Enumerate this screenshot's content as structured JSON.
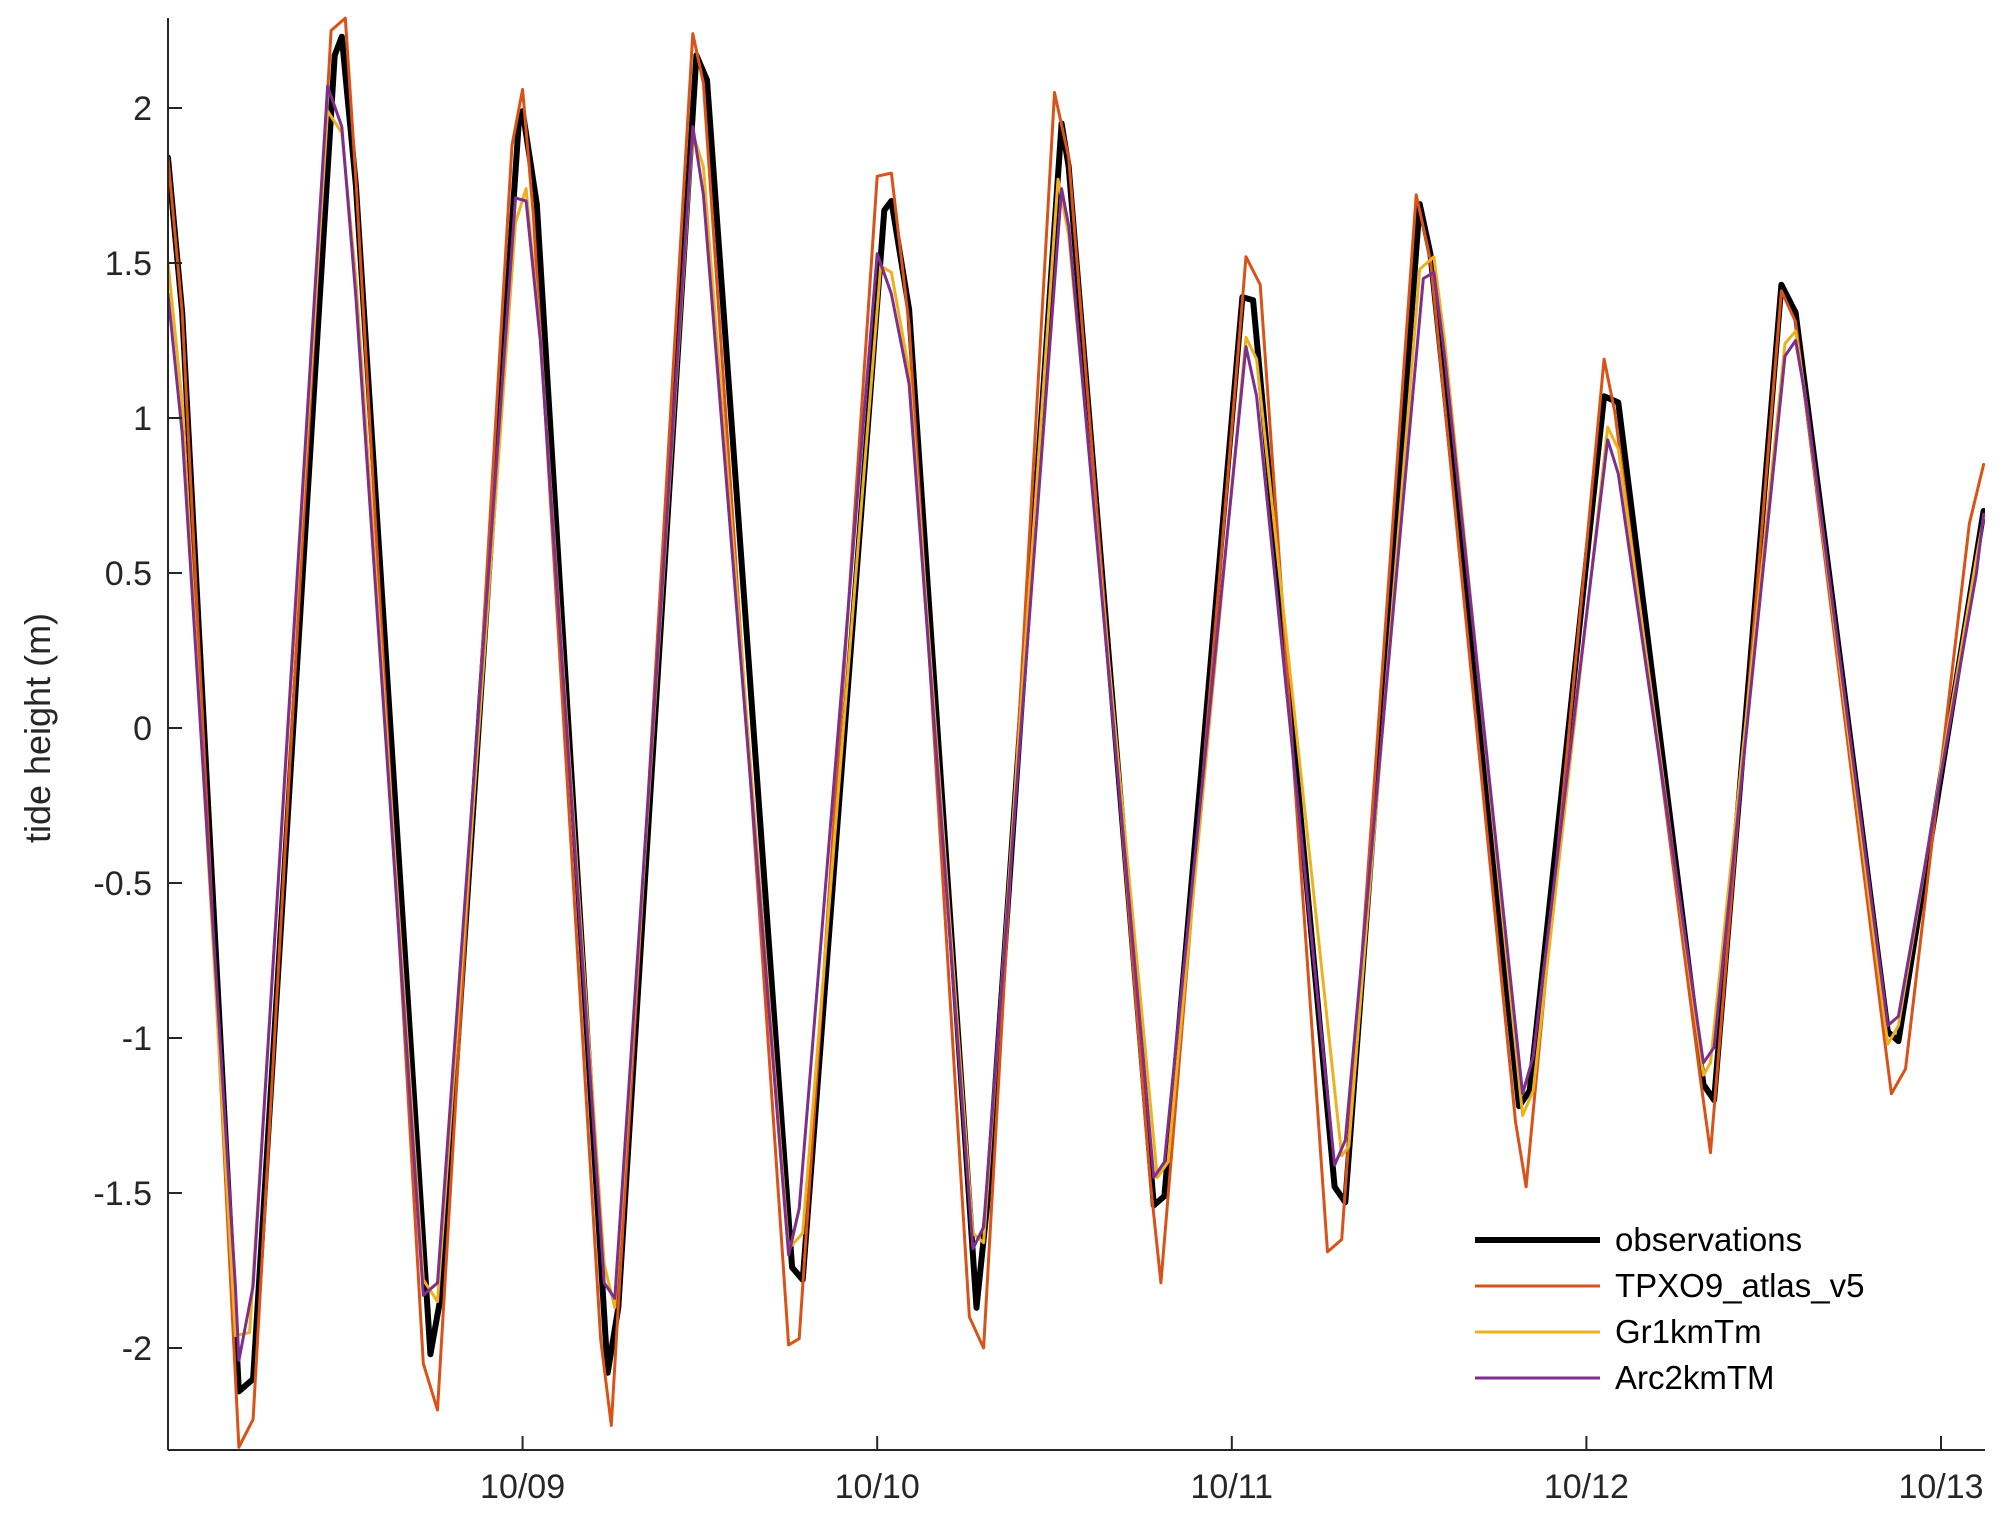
{
  "chart_data": {
    "type": "line",
    "title": "",
    "xlabel": "",
    "ylabel": "tide height (m)",
    "xlim": [
      0,
      5.12
    ],
    "ylim": [
      -2.33,
      2.3
    ],
    "grid": false,
    "legend_position": "bottom-right",
    "x_ticks": [
      {
        "value": 1,
        "label": "10/09"
      },
      {
        "value": 2,
        "label": "10/10"
      },
      {
        "value": 3,
        "label": "10/11"
      },
      {
        "value": 4,
        "label": "10/12"
      },
      {
        "value": 5,
        "label": "10/13"
      }
    ],
    "y_ticks": [
      {
        "value": 2,
        "label": "2"
      },
      {
        "value": 1.5,
        "label": "1.5"
      },
      {
        "value": 1,
        "label": "1"
      },
      {
        "value": 0.5,
        "label": "0.5"
      },
      {
        "value": 0,
        "label": "0"
      },
      {
        "value": -0.5,
        "label": "-0.5"
      },
      {
        "value": -1,
        "label": "-1"
      },
      {
        "value": -1.5,
        "label": "-1.5"
      },
      {
        "value": -2,
        "label": "-2"
      }
    ],
    "series": [
      {
        "name": "observations",
        "color": "#000000",
        "width": 6,
        "points": [
          [
            0,
            1.84
          ],
          [
            0.04,
            1.34
          ],
          [
            0.2,
            -2.14
          ],
          [
            0.24,
            -2.1
          ],
          [
            0.47,
            2.17
          ],
          [
            0.49,
            2.23
          ],
          [
            0.53,
            1.75
          ],
          [
            0.74,
            -2.02
          ],
          [
            0.77,
            -1.83
          ],
          [
            0.99,
            1.97
          ],
          [
            1,
            1.99
          ],
          [
            1.04,
            1.69
          ],
          [
            1.24,
            -2.08
          ],
          [
            1.27,
            -1.87
          ],
          [
            1.49,
            2.17
          ],
          [
            1.52,
            2.09
          ],
          [
            1.76,
            -1.74
          ],
          [
            1.79,
            -1.78
          ],
          [
            2.02,
            1.67
          ],
          [
            2.04,
            1.7
          ],
          [
            2.09,
            1.35
          ],
          [
            2.28,
            -1.87
          ],
          [
            2.31,
            -1.54
          ],
          [
            2.52,
            1.95
          ],
          [
            2.54,
            1.81
          ],
          [
            2.78,
            -1.54
          ],
          [
            2.81,
            -1.51
          ],
          [
            3.03,
            1.39
          ],
          [
            3.06,
            1.38
          ],
          [
            3.29,
            -1.48
          ],
          [
            3.32,
            -1.53
          ],
          [
            3.53,
            1.69
          ],
          [
            3.56,
            1.53
          ],
          [
            3.81,
            -1.22
          ],
          [
            3.84,
            -1.17
          ],
          [
            4.05,
            1.07
          ],
          [
            4.09,
            1.05
          ],
          [
            4.33,
            -1.15
          ],
          [
            4.36,
            -1.2
          ],
          [
            4.55,
            1.43
          ],
          [
            4.59,
            1.34
          ],
          [
            4.85,
            -0.98
          ],
          [
            4.88,
            -1.01
          ],
          [
            5.12,
            0.7
          ]
        ]
      },
      {
        "name": "TPXO9_atlas_v5",
        "color": "#D95319",
        "width": 3,
        "points": [
          [
            0,
            1.84
          ],
          [
            0.04,
            1.34
          ],
          [
            0.2,
            -2.32
          ],
          [
            0.24,
            -2.23
          ],
          [
            0.46,
            2.25
          ],
          [
            0.5,
            2.29
          ],
          [
            0.53,
            1.77
          ],
          [
            0.72,
            -2.05
          ],
          [
            0.76,
            -2.2
          ],
          [
            0.97,
            1.88
          ],
          [
            1,
            2.06
          ],
          [
            1.03,
            1.66
          ],
          [
            1.22,
            -1.97
          ],
          [
            1.25,
            -2.25
          ],
          [
            1.48,
            2.24
          ],
          [
            1.51,
            2.08
          ],
          [
            1.75,
            -1.99
          ],
          [
            1.78,
            -1.97
          ],
          [
            2,
            1.78
          ],
          [
            2.04,
            1.79
          ],
          [
            2.09,
            1.3
          ],
          [
            2.26,
            -1.9
          ],
          [
            2.3,
            -2
          ],
          [
            2.5,
            2.05
          ],
          [
            2.54,
            1.84
          ],
          [
            2.77,
            -1.46
          ],
          [
            2.8,
            -1.79
          ],
          [
            3.04,
            1.52
          ],
          [
            3.08,
            1.43
          ],
          [
            3.27,
            -1.69
          ],
          [
            3.31,
            -1.65
          ],
          [
            3.52,
            1.72
          ],
          [
            3.56,
            1.51
          ],
          [
            3.8,
            -1.27
          ],
          [
            3.83,
            -1.48
          ],
          [
            4.05,
            1.19
          ],
          [
            4.08,
            1.02
          ],
          [
            4.32,
            -1.12
          ],
          [
            4.35,
            -1.37
          ],
          [
            4.55,
            1.41
          ],
          [
            4.59,
            1.31
          ],
          [
            4.84,
            -1
          ],
          [
            4.86,
            -1.18
          ],
          [
            4.9,
            -1.1
          ],
          [
            5.08,
            0.66
          ],
          [
            5.12,
            0.85
          ]
        ]
      },
      {
        "name": "Gr1kmTm",
        "color": "#EDB120",
        "width": 3,
        "points": [
          [
            0,
            1.5
          ],
          [
            0.04,
            1.05
          ],
          [
            0.19,
            -1.96
          ],
          [
            0.23,
            -1.95
          ],
          [
            0.45,
            1.99
          ],
          [
            0.49,
            1.92
          ],
          [
            0.53,
            1.45
          ],
          [
            0.72,
            -1.78
          ],
          [
            0.76,
            -1.85
          ],
          [
            0.98,
            1.63
          ],
          [
            1.01,
            1.74
          ],
          [
            1.05,
            1.26
          ],
          [
            1.23,
            -1.73
          ],
          [
            1.26,
            -1.87
          ],
          [
            1.48,
            1.92
          ],
          [
            1.51,
            1.81
          ],
          [
            1.75,
            -1.68
          ],
          [
            1.79,
            -1.63
          ],
          [
            2.01,
            1.49
          ],
          [
            2.04,
            1.47
          ],
          [
            2.09,
            1.15
          ],
          [
            2.27,
            -1.63
          ],
          [
            2.3,
            -1.66
          ],
          [
            2.51,
            1.77
          ],
          [
            2.54,
            1.59
          ],
          [
            2.79,
            -1.45
          ],
          [
            2.82,
            -1.4
          ],
          [
            3.04,
            1.26
          ],
          [
            3.07,
            1.19
          ],
          [
            3.31,
            -1.38
          ],
          [
            3.33,
            -1.35
          ],
          [
            3.53,
            1.48
          ],
          [
            3.57,
            1.52
          ],
          [
            3.6,
            1.25
          ],
          [
            3.82,
            -1.25
          ],
          [
            3.85,
            -1.17
          ],
          [
            4.06,
            0.97
          ],
          [
            4.09,
            0.9
          ],
          [
            4.33,
            -1.12
          ],
          [
            4.35,
            -1.08
          ],
          [
            4.56,
            1.24
          ],
          [
            4.59,
            1.28
          ],
          [
            4.62,
            1.05
          ],
          [
            4.85,
            -1.02
          ],
          [
            4.88,
            -0.96
          ],
          [
            5.1,
            0.55
          ],
          [
            5.12,
            0.68
          ]
        ]
      },
      {
        "name": "Arc2kmTM",
        "color": "#7E2F8E",
        "width": 3,
        "points": [
          [
            0,
            1.4
          ],
          [
            0.04,
            0.95
          ],
          [
            0.19,
            -1.8
          ],
          [
            0.2,
            -2.04
          ],
          [
            0.24,
            -1.8
          ],
          [
            0.45,
            2.07
          ],
          [
            0.49,
            1.94
          ],
          [
            0.53,
            1.39
          ],
          [
            0.72,
            -1.83
          ],
          [
            0.76,
            -1.79
          ],
          [
            0.98,
            1.71
          ],
          [
            1.01,
            1.7
          ],
          [
            1.05,
            1.25
          ],
          [
            1.23,
            -1.79
          ],
          [
            1.26,
            -1.84
          ],
          [
            1.48,
            1.94
          ],
          [
            1.51,
            1.72
          ],
          [
            1.75,
            -1.7
          ],
          [
            1.78,
            -1.55
          ],
          [
            2,
            1.53
          ],
          [
            2.04,
            1.4
          ],
          [
            2.09,
            1.11
          ],
          [
            2.27,
            -1.68
          ],
          [
            2.3,
            -1.61
          ],
          [
            2.52,
            1.74
          ],
          [
            2.54,
            1.62
          ],
          [
            2.78,
            -1.45
          ],
          [
            2.81,
            -1.4
          ],
          [
            3.04,
            1.23
          ],
          [
            3.07,
            1.07
          ],
          [
            3.29,
            -1.41
          ],
          [
            3.32,
            -1.33
          ],
          [
            3.54,
            1.45
          ],
          [
            3.57,
            1.47
          ],
          [
            3.6,
            1.2
          ],
          [
            3.82,
            -1.18
          ],
          [
            3.85,
            -1.06
          ],
          [
            4.06,
            0.93
          ],
          [
            4.09,
            0.82
          ],
          [
            4.33,
            -1.08
          ],
          [
            4.36,
            -1.03
          ],
          [
            4.56,
            1.2
          ],
          [
            4.59,
            1.25
          ],
          [
            4.62,
            1.05
          ],
          [
            4.85,
            -0.96
          ],
          [
            4.88,
            -0.93
          ],
          [
            5.1,
            0.5
          ],
          [
            5.12,
            0.69
          ]
        ]
      }
    ]
  }
}
